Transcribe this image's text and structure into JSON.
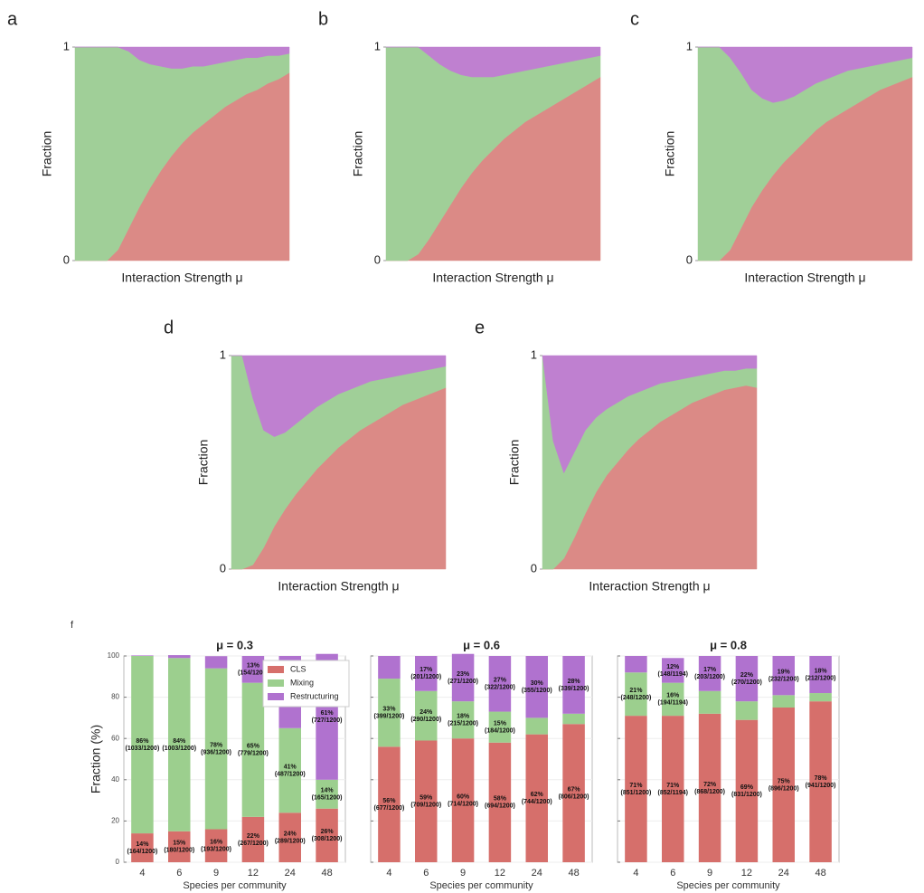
{
  "chart_data": [
    {
      "type": "area",
      "panel": "a",
      "y_label": "Fraction",
      "x_label": "Interaction Strength μ",
      "ylim": [
        0,
        1
      ],
      "yticks": [
        0,
        1
      ],
      "categories": [
        null,
        null,
        null,
        null,
        null,
        null,
        null,
        null,
        null,
        null,
        null,
        null,
        null,
        null,
        null,
        null,
        null,
        null,
        null,
        null,
        null
      ],
      "series": [
        {
          "color": "#db8a86",
          "values": [
            0,
            0,
            0,
            0,
            0.05,
            0.15,
            0.25,
            0.34,
            0.42,
            0.49,
            0.55,
            0.6,
            0.64,
            0.68,
            0.72,
            0.75,
            0.78,
            0.8,
            0.83,
            0.85,
            0.88
          ]
        },
        {
          "color": "#a0cf98",
          "values": [
            1,
            1,
            1,
            1,
            0.95,
            0.83,
            0.69,
            0.58,
            0.49,
            0.41,
            0.35,
            0.31,
            0.27,
            0.24,
            0.21,
            0.19,
            0.17,
            0.15,
            0.13,
            0.11,
            0.09
          ]
        },
        {
          "color": "#bf80d0",
          "values": [
            0,
            0,
            0,
            0,
            0,
            0.02,
            0.06,
            0.08,
            0.09,
            0.1,
            0.1,
            0.09,
            0.09,
            0.08,
            0.07,
            0.06,
            0.05,
            0.05,
            0.04,
            0.04,
            0.03
          ]
        }
      ]
    },
    {
      "type": "area",
      "panel": "b",
      "y_label": "Fraction",
      "x_label": "Interaction Strength μ",
      "ylim": [
        0,
        1
      ],
      "yticks": [
        0,
        1
      ],
      "categories": [
        null,
        null,
        null,
        null,
        null,
        null,
        null,
        null,
        null,
        null,
        null,
        null,
        null,
        null,
        null,
        null,
        null,
        null,
        null,
        null,
        null
      ],
      "series": [
        {
          "color": "#db8a86",
          "values": [
            0,
            0,
            0,
            0.03,
            0.1,
            0.18,
            0.26,
            0.34,
            0.41,
            0.47,
            0.52,
            0.57,
            0.61,
            0.65,
            0.68,
            0.71,
            0.74,
            0.77,
            0.8,
            0.83,
            0.86
          ]
        },
        {
          "color": "#a0cf98",
          "values": [
            1,
            1,
            1,
            0.97,
            0.86,
            0.74,
            0.63,
            0.53,
            0.45,
            0.39,
            0.34,
            0.3,
            0.27,
            0.24,
            0.22,
            0.2,
            0.18,
            0.16,
            0.14,
            0.12,
            0.1
          ]
        },
        {
          "color": "#bf80d0",
          "values": [
            0,
            0,
            0,
            0,
            0.04,
            0.08,
            0.11,
            0.13,
            0.14,
            0.14,
            0.14,
            0.13,
            0.12,
            0.11,
            0.1,
            0.09,
            0.08,
            0.07,
            0.06,
            0.05,
            0.04
          ]
        }
      ]
    },
    {
      "type": "area",
      "panel": "c",
      "y_label": "Fraction",
      "x_label": "Interaction Strength μ",
      "ylim": [
        0,
        1
      ],
      "yticks": [
        0,
        1
      ],
      "categories": [
        null,
        null,
        null,
        null,
        null,
        null,
        null,
        null,
        null,
        null,
        null,
        null,
        null,
        null,
        null,
        null,
        null,
        null,
        null,
        null,
        null
      ],
      "series": [
        {
          "color": "#db8a86",
          "values": [
            0,
            0,
            0,
            0.05,
            0.15,
            0.25,
            0.33,
            0.4,
            0.46,
            0.51,
            0.56,
            0.61,
            0.65,
            0.68,
            0.71,
            0.74,
            0.77,
            0.8,
            0.82,
            0.84,
            0.86
          ]
        },
        {
          "color": "#a0cf98",
          "values": [
            1,
            1,
            1,
            0.9,
            0.73,
            0.55,
            0.43,
            0.34,
            0.29,
            0.26,
            0.24,
            0.22,
            0.2,
            0.19,
            0.18,
            0.16,
            0.14,
            0.12,
            0.11,
            0.1,
            0.09
          ]
        },
        {
          "color": "#bf80d0",
          "values": [
            0,
            0,
            0,
            0.05,
            0.12,
            0.2,
            0.24,
            0.26,
            0.25,
            0.23,
            0.2,
            0.17,
            0.15,
            0.13,
            0.11,
            0.1,
            0.09,
            0.08,
            0.07,
            0.06,
            0.05
          ]
        }
      ]
    },
    {
      "type": "area",
      "panel": "d",
      "y_label": "Fraction",
      "x_label": "Interaction Strength μ",
      "ylim": [
        0,
        1
      ],
      "yticks": [
        0,
        1
      ],
      "categories": [
        null,
        null,
        null,
        null,
        null,
        null,
        null,
        null,
        null,
        null,
        null,
        null,
        null,
        null,
        null,
        null,
        null,
        null,
        null,
        null,
        null
      ],
      "series": [
        {
          "color": "#db8a86",
          "values": [
            0,
            0,
            0.02,
            0.1,
            0.2,
            0.28,
            0.35,
            0.41,
            0.47,
            0.52,
            0.57,
            0.61,
            0.65,
            0.68,
            0.71,
            0.74,
            0.77,
            0.79,
            0.81,
            0.83,
            0.85
          ]
        },
        {
          "color": "#a0cf98",
          "values": [
            1,
            1,
            0.78,
            0.55,
            0.42,
            0.36,
            0.33,
            0.31,
            0.29,
            0.27,
            0.25,
            0.23,
            0.21,
            0.2,
            0.18,
            0.16,
            0.14,
            0.13,
            0.12,
            0.11,
            0.1
          ]
        },
        {
          "color": "#bf80d0",
          "values": [
            0,
            0,
            0.2,
            0.35,
            0.38,
            0.36,
            0.32,
            0.28,
            0.24,
            0.21,
            0.18,
            0.16,
            0.14,
            0.12,
            0.11,
            0.1,
            0.09,
            0.08,
            0.07,
            0.06,
            0.05
          ]
        }
      ]
    },
    {
      "type": "area",
      "panel": "e",
      "y_label": "Fraction",
      "x_label": "Interaction Strength μ",
      "ylim": [
        0,
        1
      ],
      "yticks": [
        0,
        1
      ],
      "categories": [
        null,
        null,
        null,
        null,
        null,
        null,
        null,
        null,
        null,
        null,
        null,
        null,
        null,
        null,
        null,
        null,
        null,
        null,
        null,
        null,
        null
      ],
      "series": [
        {
          "color": "#db8a86",
          "values": [
            0,
            0,
            0.05,
            0.15,
            0.26,
            0.36,
            0.44,
            0.5,
            0.56,
            0.61,
            0.65,
            0.69,
            0.72,
            0.75,
            0.78,
            0.8,
            0.82,
            0.84,
            0.85,
            0.86,
            0.85
          ]
        },
        {
          "color": "#a0cf98",
          "values": [
            1,
            0.6,
            0.4,
            0.4,
            0.39,
            0.35,
            0.31,
            0.28,
            0.25,
            0.22,
            0.2,
            0.18,
            0.16,
            0.14,
            0.12,
            0.11,
            0.1,
            0.09,
            0.08,
            0.08,
            0.09
          ]
        },
        {
          "color": "#bf80d0",
          "values": [
            0,
            0.4,
            0.55,
            0.45,
            0.35,
            0.29,
            0.25,
            0.22,
            0.19,
            0.17,
            0.15,
            0.13,
            0.12,
            0.11,
            0.1,
            0.09,
            0.08,
            0.07,
            0.07,
            0.06,
            0.06
          ]
        }
      ]
    },
    {
      "type": "bar",
      "panel": "f",
      "title": "μ = 0.3",
      "y_label": "Fraction (%)",
      "x_label": "Species per community",
      "ylim": [
        0,
        100
      ],
      "yticks": [
        0,
        20,
        40,
        60,
        80,
        100
      ],
      "tick_labels": true,
      "legend": "upper right",
      "categories": [
        "4",
        "6",
        "9",
        "12",
        "24",
        "48"
      ],
      "series": [
        {
          "name": "CLS",
          "color": "#d66f6b",
          "values": [
            14,
            15,
            16,
            22,
            24,
            26
          ],
          "value_labels": [
            [
              "14%",
              "(164/1200)"
            ],
            [
              "15%",
              "(180/1200)"
            ],
            [
              "16%",
              "(193/1200)"
            ],
            [
              "22%",
              "(267/1200)"
            ],
            [
              "24%",
              "(289/1200)"
            ],
            [
              "26%",
              "(308/1200)"
            ]
          ]
        },
        {
          "name": "Mixing",
          "color": "#9ccf8e",
          "values": [
            86,
            84,
            78,
            65,
            41,
            14
          ],
          "value_labels": [
            [
              "86%",
              "(1033/1200)"
            ],
            [
              "84%",
              "(1003/1200)"
            ],
            [
              "78%",
              "(936/1200)"
            ],
            [
              "65%",
              "(779/1200)"
            ],
            [
              "41%",
              "(487/1200)"
            ],
            [
              "14%",
              "(165/1200)"
            ]
          ]
        },
        {
          "name": "Restructuring",
          "color": "#b072cf",
          "values": [
            0.25,
            1.4,
            5.9,
            13,
            35,
            61
          ],
          "value_labels": [
            null,
            null,
            null,
            [
              "13%",
              "(154/1200)"
            ],
            null,
            [
              "61%",
              "(727/1200)"
            ]
          ]
        }
      ]
    },
    {
      "type": "bar",
      "title": "μ = 0.6",
      "x_label": "Species per community",
      "ylim": [
        0,
        100
      ],
      "yticks": [
        0,
        20,
        40,
        60,
        80,
        100
      ],
      "tick_labels": false,
      "categories": [
        "4",
        "6",
        "9",
        "12",
        "24",
        "48"
      ],
      "series": [
        {
          "color": "#d66f6b",
          "values": [
            56,
            59,
            60,
            58,
            62,
            67
          ],
          "value_labels": [
            [
              "56%",
              "(677/1200)"
            ],
            [
              "59%",
              "(709/1200)"
            ],
            [
              "60%",
              "(714/1200)"
            ],
            [
              "58%",
              "(694/1200)"
            ],
            [
              "62%",
              "(744/1200)"
            ],
            [
              "67%",
              "(806/1200)"
            ]
          ]
        },
        {
          "color": "#9ccf8e",
          "values": [
            33,
            24,
            18,
            15,
            8,
            5
          ],
          "value_labels": [
            [
              "33%",
              "(399/1200)"
            ],
            [
              "24%",
              "(290/1200)"
            ],
            [
              "18%",
              "(215/1200)"
            ],
            [
              "15%",
              "(184/1200)"
            ],
            null,
            null
          ]
        },
        {
          "color": "#b072cf",
          "values": [
            11,
            17,
            23,
            27,
            30,
            28
          ],
          "value_labels": [
            null,
            [
              "17%",
              "(201/1200)"
            ],
            [
              "23%",
              "(271/1200)"
            ],
            [
              "27%",
              "(322/1200)"
            ],
            [
              "30%",
              "(355/1200)"
            ],
            [
              "28%",
              "(339/1200)"
            ]
          ]
        }
      ]
    },
    {
      "type": "bar",
      "title": "μ = 0.8",
      "x_label": "Species per community",
      "ylim": [
        0,
        100
      ],
      "yticks": [
        0,
        20,
        40,
        60,
        80,
        100
      ],
      "tick_labels": false,
      "categories": [
        "4",
        "6",
        "9",
        "12",
        "24",
        "48"
      ],
      "series": [
        {
          "color": "#d66f6b",
          "values": [
            71,
            71,
            72,
            69,
            75,
            78
          ],
          "value_labels": [
            [
              "71%",
              "(851/1200)"
            ],
            [
              "71%",
              "(852/1194)"
            ],
            [
              "72%",
              "(868/1200)"
            ],
            [
              "69%",
              "(831/1200)"
            ],
            [
              "75%",
              "(896/1200)"
            ],
            [
              "78%",
              "(941/1200)"
            ]
          ]
        },
        {
          "color": "#9ccf8e",
          "values": [
            21,
            16,
            11,
            9,
            6,
            4
          ],
          "value_labels": [
            [
              "21%",
              "(248/1200)"
            ],
            [
              "16%",
              "(194/1194)"
            ],
            null,
            null,
            null,
            null
          ]
        },
        {
          "color": "#b072cf",
          "values": [
            8,
            12,
            17,
            22,
            19,
            18
          ],
          "value_labels": [
            null,
            [
              "12%",
              "(148/1194)"
            ],
            [
              "17%",
              "(203/1200)"
            ],
            [
              "22%",
              "(270/1200)"
            ],
            [
              "19%",
              "(232/1200)"
            ],
            [
              "18%",
              "(212/1200)"
            ]
          ]
        }
      ]
    }
  ]
}
